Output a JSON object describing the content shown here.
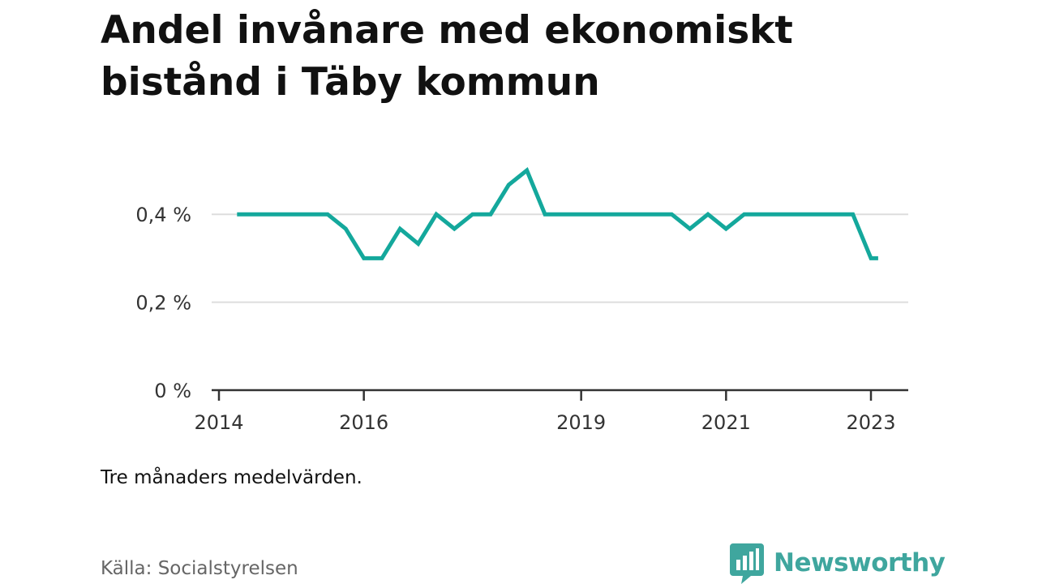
{
  "title": "Andel invånare med ekonomiskt bistånd i Täby kommun",
  "note": "Tre månaders medelvärden.",
  "source": "Källa: Socialstyrelsen",
  "brand": {
    "name": "Newsworthy",
    "icon": "bar-chart-speech-bubble-icon",
    "color": "#3fa69e"
  },
  "chart_data": {
    "type": "line",
    "title": "Andel invånare med ekonomiskt bistånd i Täby kommun",
    "xlabel": "",
    "ylabel": "",
    "line_color": "#14a89c",
    "grid": true,
    "xlim": [
      2013.9,
      2023.3
    ],
    "ylim": [
      0,
      0.5
    ],
    "x_ticks": [
      {
        "value": 2014,
        "label": "2014"
      },
      {
        "value": 2016,
        "label": "2016"
      },
      {
        "value": 2019,
        "label": "2019"
      },
      {
        "value": 2021,
        "label": "2021"
      },
      {
        "value": 2023,
        "label": "2023"
      }
    ],
    "y_ticks": [
      {
        "value": 0,
        "label": "0 %"
      },
      {
        "value": 0.2,
        "label": "0,2 %"
      },
      {
        "value": 0.4,
        "label": "0,4 %"
      }
    ],
    "series": [
      {
        "x": [
          2014.25,
          2014.5,
          2014.75,
          2015.0,
          2015.25,
          2015.5,
          2015.75,
          2016.0,
          2016.25,
          2016.5,
          2016.75,
          2017.0,
          2017.25,
          2017.5,
          2017.75,
          2018.0,
          2018.25,
          2018.5,
          2018.75,
          2019.0,
          2019.25,
          2019.5,
          2019.75,
          2020.0,
          2020.25,
          2020.5,
          2020.75,
          2021.0,
          2021.25,
          2021.5,
          2021.75,
          2022.0,
          2022.25,
          2022.5,
          2022.75,
          2023.0,
          2023.1
        ],
        "values": [
          0.4,
          0.4,
          0.4,
          0.4,
          0.4,
          0.4,
          0.367,
          0.3,
          0.3,
          0.367,
          0.333,
          0.4,
          0.367,
          0.4,
          0.4,
          0.467,
          0.5,
          0.4,
          0.4,
          0.4,
          0.4,
          0.4,
          0.4,
          0.4,
          0.4,
          0.367,
          0.4,
          0.367,
          0.4,
          0.4,
          0.4,
          0.4,
          0.4,
          0.4,
          0.4,
          0.3,
          0.3
        ]
      }
    ]
  }
}
